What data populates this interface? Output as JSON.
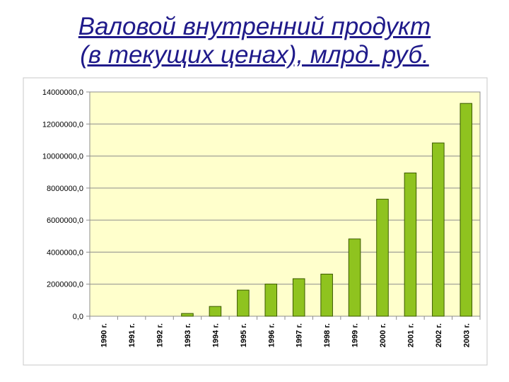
{
  "slide": {
    "title_line_1": "Валовой внутренний продукт",
    "title_line_2": "(в текущих ценах), млрд. руб."
  },
  "colors": {
    "title": "#1f1a8a",
    "plot_background": "#ffffcc",
    "bar_fill": "#8fc31f",
    "bar_stroke": "#3b5a00",
    "gridline": "#8c8c8c",
    "frame": "#c8c8c8"
  },
  "chart_data": {
    "type": "bar",
    "categories": [
      "1990 г.",
      "1991 г.",
      "1992 г.",
      "1993 г.",
      "1994 г.",
      "1995 г.",
      "1996 г.",
      "1997 г.",
      "1998 г.",
      "1999 г.",
      "2000 г.",
      "2001 г.",
      "2002 г.",
      "2003 г."
    ],
    "values": [
      0,
      0,
      0,
      171500,
      610700,
      1630100,
      2007800,
      2342500,
      2629600,
      4823200,
      7305600,
      8943600,
      10817500,
      13285200
    ],
    "ylim": [
      0,
      14000000
    ],
    "yticks": [
      0,
      2000000,
      4000000,
      6000000,
      8000000,
      10000000,
      12000000,
      14000000
    ],
    "ytick_labels": [
      "0,0",
      "2000000,0",
      "4000000,0",
      "6000000,0",
      "8000000,0",
      "10000000,0",
      "12000000,0",
      "14000000,0"
    ],
    "grid": true,
    "legend": false
  }
}
